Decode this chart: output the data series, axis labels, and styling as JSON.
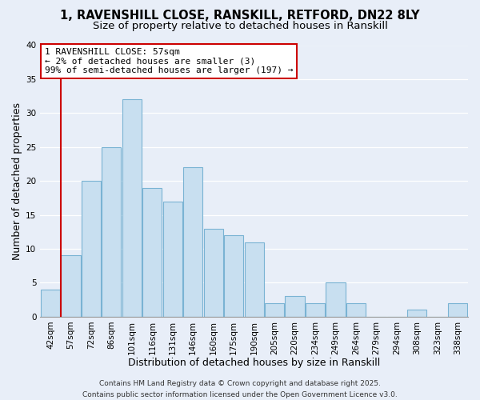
{
  "title_line1": "1, RAVENSHILL CLOSE, RANSKILL, RETFORD, DN22 8LY",
  "title_line2": "Size of property relative to detached houses in Ranskill",
  "xlabel": "Distribution of detached houses by size in Ranskill",
  "ylabel": "Number of detached properties",
  "bin_labels": [
    "42sqm",
    "57sqm",
    "72sqm",
    "86sqm",
    "101sqm",
    "116sqm",
    "131sqm",
    "146sqm",
    "160sqm",
    "175sqm",
    "190sqm",
    "205sqm",
    "220sqm",
    "234sqm",
    "249sqm",
    "264sqm",
    "279sqm",
    "294sqm",
    "308sqm",
    "323sqm",
    "338sqm"
  ],
  "bar_values": [
    4,
    9,
    20,
    25,
    32,
    19,
    17,
    22,
    13,
    12,
    11,
    2,
    3,
    2,
    5,
    2,
    0,
    0,
    1,
    0,
    2
  ],
  "bar_color": "#c8dff0",
  "bar_edge_color": "#7ab3d3",
  "highlight_bar_index": 1,
  "highlight_bar_edge_color": "#cc0000",
  "annotation_box_text": "1 RAVENSHILL CLOSE: 57sqm\n← 2% of detached houses are smaller (3)\n99% of semi-detached houses are larger (197) →",
  "annotation_box_edge_color": "#cc0000",
  "annotation_box_face_color": "#ffffff",
  "ylim": [
    0,
    40
  ],
  "yticks": [
    0,
    5,
    10,
    15,
    20,
    25,
    30,
    35,
    40
  ],
  "background_color": "#e8eef8",
  "grid_color": "#ffffff",
  "footer_text": "Contains HM Land Registry data © Crown copyright and database right 2025.\nContains public sector information licensed under the Open Government Licence v3.0.",
  "title_fontsize": 10.5,
  "subtitle_fontsize": 9.5,
  "axis_label_fontsize": 9,
  "tick_label_fontsize": 7.5,
  "annotation_fontsize": 8,
  "footer_fontsize": 6.5
}
